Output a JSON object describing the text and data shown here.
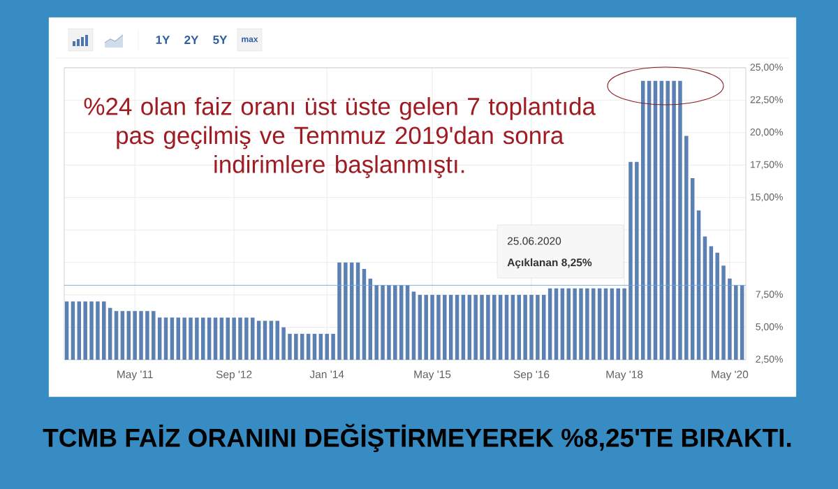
{
  "chart_data": {
    "type": "bar",
    "title": "TCMB FAİZ ORANINI DEĞİŞTİRMEYEREK %8,25'TE BIRAKTI.",
    "annotations": [
      "%24 olan faiz oranı üst üste gelen 7 toplantıda pas geçilmiş ve Temmuz 2019'dan sonra indirimlere başlanmıştı.",
      "25.06.2020",
      "Açıklanan 8,25%",
      "1Y",
      "2Y",
      "5Y",
      "max"
    ],
    "categories": [
      null,
      null,
      null,
      null,
      null,
      null,
      null,
      null,
      null,
      null,
      null,
      "May '11",
      null,
      null,
      null,
      null,
      null,
      null,
      null,
      null,
      null,
      null,
      null,
      null,
      null,
      null,
      null,
      "Sep '12",
      null,
      null,
      null,
      null,
      null,
      null,
      null,
      null,
      null,
      null,
      null,
      null,
      null,
      null,
      "Jan '14",
      null,
      null,
      null,
      null,
      null,
      null,
      null,
      null,
      null,
      null,
      null,
      null,
      null,
      null,
      null,
      null,
      "May '15",
      null,
      null,
      null,
      null,
      null,
      null,
      null,
      null,
      null,
      null,
      null,
      null,
      null,
      null,
      null,
      "Sep '16",
      null,
      null,
      null,
      null,
      null,
      null,
      null,
      null,
      null,
      null,
      null,
      null,
      null,
      null,
      "May '18",
      null,
      null,
      null,
      null,
      null,
      null,
      null,
      null,
      null,
      null,
      null,
      null,
      null,
      null,
      null,
      null,
      "May '20",
      null,
      null
    ],
    "values": [
      7,
      7,
      7,
      7,
      7,
      7,
      7,
      6.5,
      6.25,
      6.25,
      6.25,
      6.25,
      6.25,
      6.25,
      6.25,
      5.75,
      5.75,
      5.75,
      5.75,
      5.75,
      5.75,
      5.75,
      5.75,
      5.75,
      5.75,
      5.75,
      5.75,
      5.75,
      5.75,
      5.75,
      5.75,
      5.5,
      5.5,
      5.5,
      5.5,
      5,
      4.5,
      4.5,
      4.5,
      4.5,
      4.5,
      4.5,
      4.5,
      4.5,
      10,
      10,
      10,
      10,
      9.5,
      8.75,
      8.25,
      8.25,
      8.25,
      8.25,
      8.25,
      8.25,
      7.75,
      7.5,
      7.5,
      7.5,
      7.5,
      7.5,
      7.5,
      7.5,
      7.5,
      7.5,
      7.5,
      7.5,
      7.5,
      7.5,
      7.5,
      7.5,
      7.5,
      7.5,
      7.5,
      7.5,
      7.5,
      7.5,
      8,
      8,
      8,
      8,
      8,
      8,
      8,
      8,
      8,
      8,
      8,
      8,
      8,
      17.75,
      17.75,
      24,
      24,
      24,
      24,
      24,
      24,
      24,
      19.75,
      16.5,
      14,
      12,
      11.25,
      10.75,
      9.75,
      8.75,
      8.25,
      8.25
    ],
    "color": "#5b80b3",
    "ylim": [
      2.5,
      25
    ],
    "yticks": [
      {
        "value": 2.5,
        "label": "2,50%"
      },
      {
        "value": 5,
        "label": "5,00%"
      },
      {
        "value": 7.5,
        "label": "7,50%"
      },
      {
        "value": 10,
        "label": null
      },
      {
        "value": 12.5,
        "label": null
      },
      {
        "value": 15,
        "label": "15,00%"
      },
      {
        "value": 17.5,
        "label": "17,50%"
      },
      {
        "value": 20,
        "label": "20,00%"
      },
      {
        "value": 22.5,
        "label": "22,50%"
      },
      {
        "value": 25,
        "label": "25,00%"
      }
    ],
    "grid": true,
    "ref_lines": [
      {
        "axis": "y",
        "value": 8.25,
        "color": "#6fa3d8"
      }
    ]
  }
}
